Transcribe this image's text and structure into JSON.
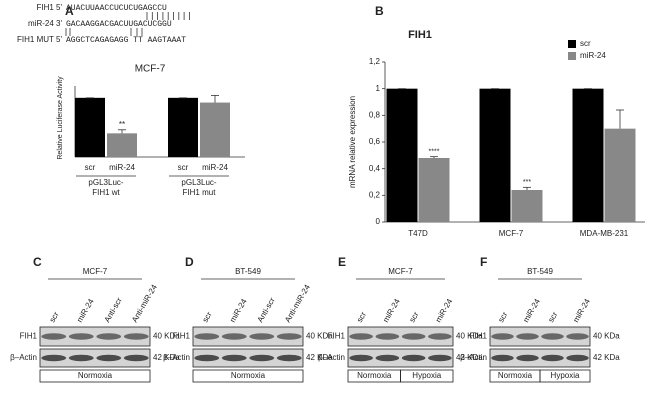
{
  "panel_letters": [
    "A",
    "B",
    "C",
    "D",
    "E",
    "F"
  ],
  "sequences": [
    {
      "label": "FIH1 5'",
      "seq": "AUACUUAACCUCUCUGAGCCU"
    },
    {
      "label": "miR-24 3'",
      "seq": "GACAAGGACGACUUGACUCGGU"
    },
    {
      "label": "FIH1 MUT 5'",
      "seq": "AGGCTCAGAGAGG TT AAGTAAAT"
    }
  ],
  "chart_data": [
    {
      "type": "bar",
      "title": "MCF-7",
      "y_label": "Relative Luciferase Activity",
      "categories": [
        "scr",
        "miR-24",
        "scr",
        "miR-24"
      ],
      "groups": [
        [
          "pGL3Luc-",
          "FIH1 wt"
        ],
        [
          "pGL3Luc-",
          "FIH1 mut"
        ]
      ],
      "values": [
        100,
        40,
        100,
        92
      ],
      "errors": [
        0,
        6,
        0,
        12
      ],
      "colors": [
        "#000000",
        "#888888",
        "#000000",
        "#888888"
      ],
      "annotations": [
        null,
        "**",
        null,
        null
      ],
      "ylim": [
        0,
        120
      ]
    },
    {
      "type": "bar",
      "title": "FIH1",
      "y_label": "mRNA relative expression",
      "categories": [
        "T47D",
        "MCF-7",
        "MDA-MB-231"
      ],
      "series": [
        {
          "name": "scr",
          "color": "#000000",
          "values": [
            1,
            1,
            1
          ],
          "errors": [
            0,
            0,
            0
          ],
          "annotations": [
            null,
            null,
            null
          ]
        },
        {
          "name": "miR-24",
          "color": "#888888",
          "values": [
            0.48,
            0.24,
            0.7
          ],
          "errors": [
            0.01,
            0.02,
            0.14
          ],
          "annotations": [
            "****",
            "***",
            null
          ]
        }
      ],
      "ylim": [
        0,
        1.2
      ],
      "yticks": [
        0,
        {
          "value": 0.2,
          "label": "0,2"
        },
        {
          "value": 0.4,
          "label": "0,4"
        },
        {
          "value": 0.6,
          "label": "0,6"
        },
        {
          "value": 0.8,
          "label": "0,8"
        },
        1,
        {
          "value": 1.2,
          "label": "1,2"
        }
      ],
      "legend": "top-right"
    }
  ],
  "blots": [
    {
      "cell_line": "MCF-7",
      "lanes": [
        "scr",
        "miR-24",
        "Anti-scr",
        "Anti-miR-24"
      ],
      "conditions": [
        "Normoxia"
      ],
      "rows": [
        "FIH1",
        "β–Actin"
      ],
      "sizes": [
        "40 KDa",
        "42 KDa"
      ]
    },
    {
      "cell_line": "BT-549",
      "lanes": [
        "scr",
        "miR-24",
        "Anti-scr",
        "Anti-miR-24"
      ],
      "conditions": [
        "Normoxia"
      ],
      "rows": [
        "FIH1",
        "β–Actin"
      ],
      "sizes": [
        "40 KDa",
        "42 KDa"
      ]
    },
    {
      "cell_line": "MCF-7",
      "lanes": [
        "scr",
        "miR-24",
        "scr",
        "miR-24"
      ],
      "conditions": [
        "Normoxia",
        "Hypoxia"
      ],
      "rows": [
        "FIH1",
        "β–Actin"
      ],
      "sizes": [
        "40 KDa",
        "42 KDa"
      ]
    },
    {
      "cell_line": "BT-549",
      "lanes": [
        "scr",
        "miR-24",
        "scr",
        "miR-24"
      ],
      "conditions": [
        "Normoxia",
        "Hypoxia"
      ],
      "rows": [
        "FIH1",
        "β–Actin"
      ],
      "sizes": [
        "40 KDa",
        "42 KDa"
      ]
    }
  ]
}
